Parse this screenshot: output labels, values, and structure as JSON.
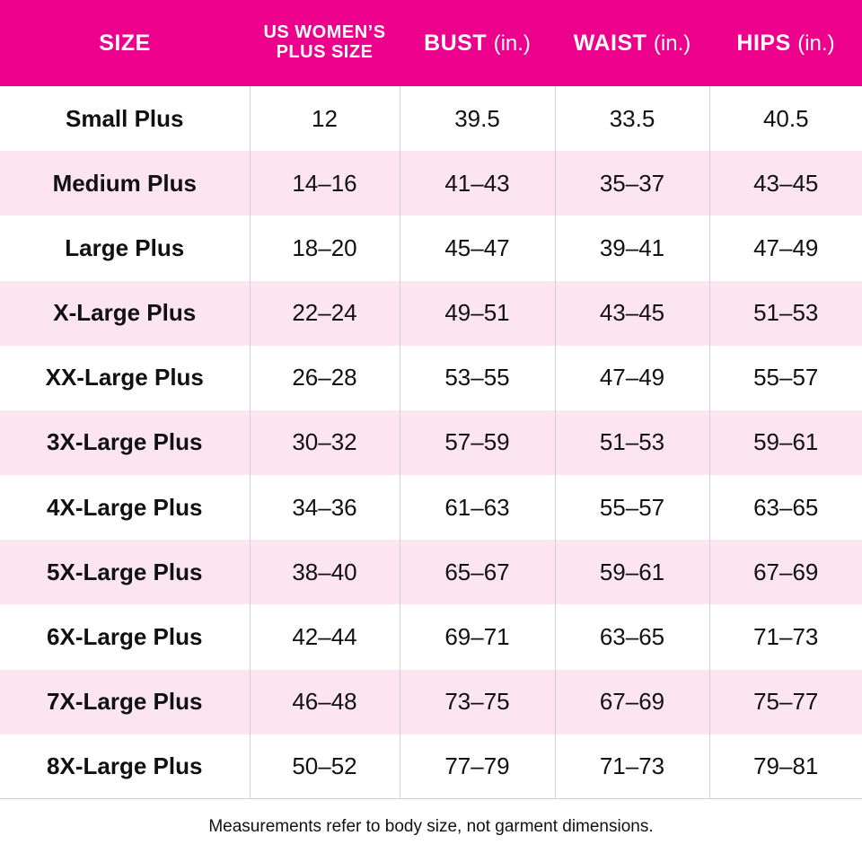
{
  "table": {
    "header": [
      {
        "label": "SIZE"
      },
      {
        "label": "US WOMEN’S PLUS SIZE"
      },
      {
        "label": "BUST",
        "unit": "(in.)"
      },
      {
        "label": "WAIST",
        "unit": "(in.)"
      },
      {
        "label": "HIPS",
        "unit": "(in.)"
      }
    ],
    "rows": [
      [
        "Small Plus",
        "12",
        "39.5",
        "33.5",
        "40.5"
      ],
      [
        "Medium Plus",
        "14–16",
        "41–43",
        "35–37",
        "43–45"
      ],
      [
        "Large Plus",
        "18–20",
        "45–47",
        "39–41",
        "47–49"
      ],
      [
        "X-Large Plus",
        "22–24",
        "49–51",
        "43–45",
        "51–53"
      ],
      [
        "XX-Large Plus",
        "26–28",
        "53–55",
        "47–49",
        "55–57"
      ],
      [
        "3X-Large Plus",
        "30–32",
        "57–59",
        "51–53",
        "59–61"
      ],
      [
        "4X-Large Plus",
        "34–36",
        "61–63",
        "55–57",
        "63–65"
      ],
      [
        "5X-Large Plus",
        "38–40",
        "65–67",
        "59–61",
        "67–69"
      ],
      [
        "6X-Large Plus",
        "42–44",
        "69–71",
        "63–65",
        "71–73"
      ],
      [
        "7X-Large Plus",
        "46–48",
        "73–75",
        "67–69",
        "75–77"
      ],
      [
        "8X-Large Plus",
        "50–52",
        "77–79",
        "71–73",
        "79–81"
      ]
    ]
  },
  "footer": "Measurements refer to body size, not garment dimensions."
}
